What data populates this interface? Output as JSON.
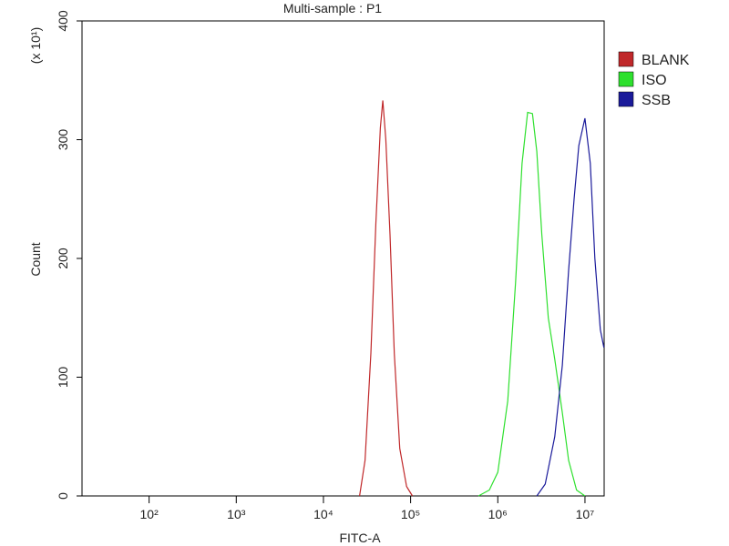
{
  "chart_data": {
    "type": "line",
    "title": "Multi-sample : P1",
    "xlabel": "FITC-A",
    "ylabel": "Count",
    "y_multiplier": "(x 10¹)",
    "xscale": "log",
    "xlim": [
      17,
      16600000
    ],
    "xticks": [
      {
        "value": 100,
        "label": "10²"
      },
      {
        "value": 1000,
        "label": "10³"
      },
      {
        "value": 10000,
        "label": "10⁴"
      },
      {
        "value": 100000,
        "label": "10⁵"
      },
      {
        "value": 1000000,
        "label": "10⁶"
      },
      {
        "value": 10000000,
        "label": "10⁷"
      }
    ],
    "ylim": [
      0,
      400
    ],
    "yticks": [
      0,
      100,
      200,
      300,
      400
    ],
    "legend": "right",
    "series": [
      {
        "name": "BLANK",
        "color": "#c0282a",
        "x": [
          26000,
          30000,
          35000,
          40000,
          45000,
          48000,
          52000,
          58000,
          65000,
          75000,
          90000,
          105000
        ],
        "values": [
          0,
          30,
          120,
          230,
          310,
          333,
          300,
          220,
          120,
          40,
          8,
          0
        ]
      },
      {
        "name": "ISO",
        "color": "#2ee02e",
        "x": [
          600000,
          800000,
          1000000,
          1300000,
          1600000,
          1900000,
          2200000,
          2500000,
          2800000,
          3200000,
          3800000,
          4500000,
          5500000,
          6500000,
          8000000,
          10000000
        ],
        "values": [
          0,
          5,
          20,
          80,
          180,
          280,
          323,
          322,
          290,
          220,
          150,
          115,
          70,
          30,
          5,
          0
        ]
      },
      {
        "name": "SSB",
        "color": "#1a1a9a",
        "x": [
          2800000,
          3500000,
          4500000,
          5500000,
          6500000,
          7500000,
          8500000,
          10000000,
          11500000,
          13000000,
          15000000,
          16500000
        ],
        "values": [
          0,
          10,
          50,
          110,
          190,
          250,
          295,
          318,
          280,
          200,
          140,
          125
        ]
      }
    ]
  }
}
